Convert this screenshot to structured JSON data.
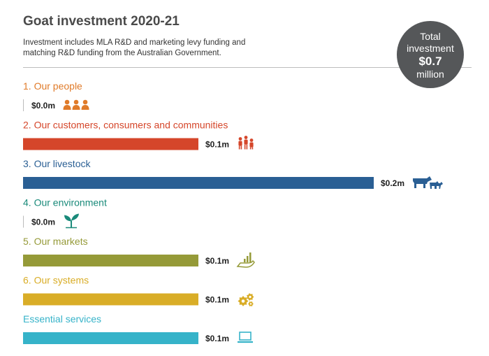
{
  "header": {
    "title": "Goat investment 2020-21",
    "subtitle": "Investment includes MLA R&D and marketing levy funding and matching R&D funding from the Australian Government."
  },
  "total": {
    "line1": "Total",
    "line2": "investment",
    "amount": "$0.7",
    "unit": "million"
  },
  "chart_data": {
    "type": "bar",
    "orientation": "horizontal",
    "title": "Goat investment 2020-21",
    "unit": "$ million",
    "xlim": [
      0,
      0.2
    ],
    "grid": false,
    "categories": [
      "1. Our people",
      "2. Our customers, consumers and communities",
      "3. Our livestock",
      "4. Our environment",
      "5. Our markets",
      "6. Our systems",
      "Essential services"
    ],
    "values": [
      0.0,
      0.1,
      0.2,
      0.0,
      0.1,
      0.1,
      0.1
    ],
    "value_labels": [
      "$0.0m",
      "$0.1m",
      "$0.2m",
      "$0.0m",
      "$0.1m",
      "$0.1m",
      "$0.1m"
    ],
    "colors": [
      "#e07b2a",
      "#d5462a",
      "#2a5f94",
      "#1a8a7a",
      "#959a38",
      "#d9ad27",
      "#36b3c9"
    ],
    "icons": [
      "people-icon",
      "family-icon",
      "livestock-icon",
      "seedling-icon",
      "hand-growth-icon",
      "gears-icon",
      "laptop-icon"
    ]
  }
}
